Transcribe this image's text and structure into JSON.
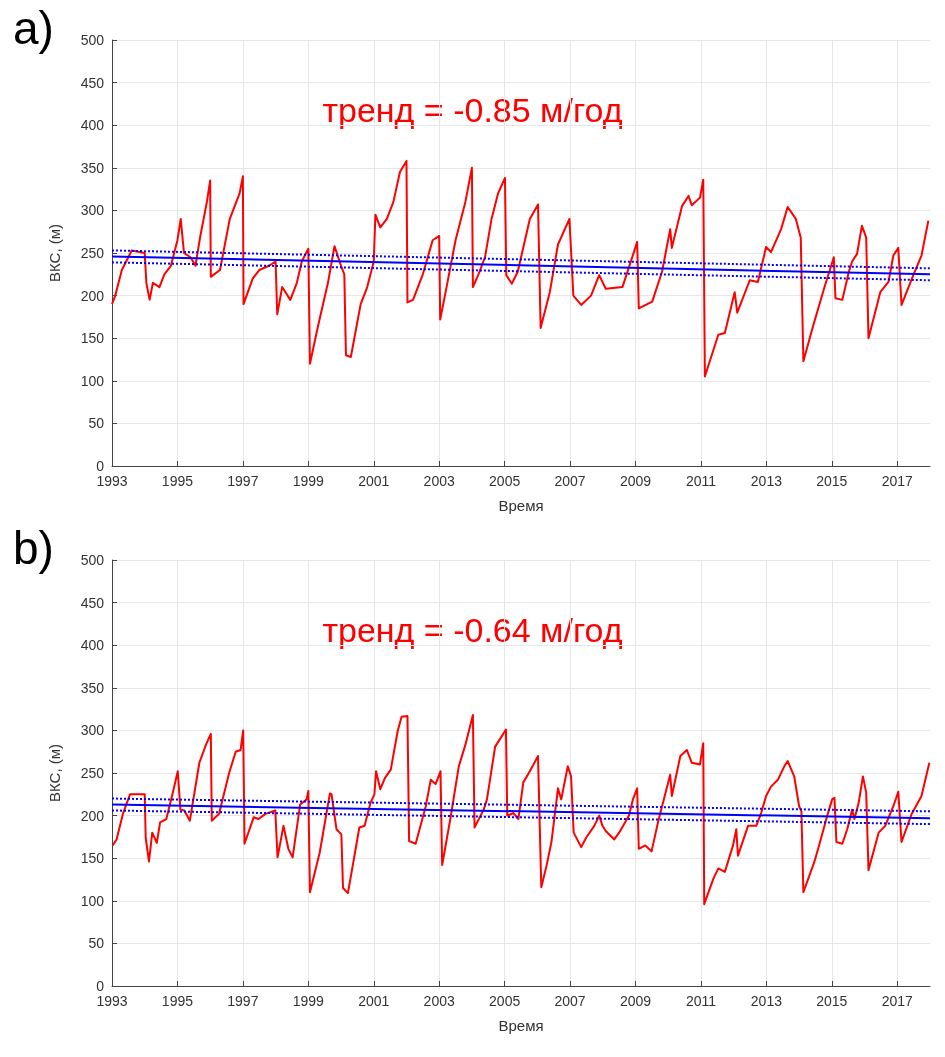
{
  "chart_data": [
    {
      "type": "line",
      "title": "a)",
      "xlabel": "Время",
      "ylabel": "ВКС, (м)",
      "annotations": [
        "тренд = -0.85 м/год"
      ],
      "xlim": [
        1993,
        2018
      ],
      "xticks": [
        1993,
        1995,
        1997,
        1999,
        2001,
        2003,
        2005,
        2007,
        2009,
        2011,
        2013,
        2015,
        2017
      ],
      "ylim": [
        0,
        500
      ],
      "yticks": [
        0,
        50,
        100,
        150,
        200,
        250,
        300,
        350,
        400,
        450,
        500
      ],
      "grid": true,
      "marker": "none",
      "series": [
        {
          "color": "#ff0000",
          "x": [
            1993.0,
            1993.1,
            1993.3,
            1993.5,
            1993.6,
            1994.0,
            1994.05,
            1994.15,
            1994.25,
            1994.45,
            1994.6,
            1994.8,
            1995.0,
            1995.1,
            1995.2,
            1995.4,
            1995.55,
            1995.7,
            1995.9,
            1996.0,
            1996.02,
            1996.3,
            1996.6,
            1996.9,
            1997.0,
            1997.02,
            1997.3,
            1997.5,
            1997.8,
            1998.0,
            1998.05,
            1998.2,
            1998.45,
            1998.65,
            1998.8,
            1999.0,
            1999.05,
            1999.3,
            1999.6,
            1999.8,
            2000.0,
            2000.1,
            2000.15,
            2000.3,
            2000.6,
            2000.8,
            2001.0,
            2001.05,
            2001.2,
            2001.4,
            2001.6,
            2001.8,
            2002.0,
            2002.03,
            2002.2,
            2002.5,
            2002.8,
            2003.0,
            2003.03,
            2003.2,
            2003.5,
            2003.8,
            2004.0,
            2004.03,
            2004.2,
            2004.4,
            2004.6,
            2004.8,
            2005.01,
            2005.05,
            2005.22,
            2005.4,
            2005.77,
            2006.02,
            2006.1,
            2006.38,
            2006.63,
            2006.98,
            2007.1,
            2007.34,
            2007.64,
            2007.89,
            2008.09,
            2008.6,
            2008.95,
            2009.05,
            2009.1,
            2009.51,
            2009.81,
            2010.06,
            2010.11,
            2010.42,
            2010.62,
            2010.72,
            2010.97,
            2011.07,
            2011.12,
            2011.53,
            2011.73,
            2012.03,
            2012.11,
            2012.49,
            2012.74,
            2012.99,
            2013.14,
            2013.45,
            2013.65,
            2013.9,
            2014.05,
            2014.13,
            2014.41,
            2014.76,
            2015.06,
            2015.11,
            2015.32,
            2015.52,
            2015.62,
            2015.77,
            2015.92,
            2016.05,
            2016.12,
            2016.48,
            2016.73,
            2016.88,
            2017.03,
            2017.13,
            2017.49,
            2017.74,
            2017.95
          ],
          "values": [
            190,
            200,
            230,
            245,
            253,
            250,
            215,
            195,
            215,
            210,
            225,
            235,
            265,
            290,
            250,
            245,
            235,
            270,
            310,
            335,
            222,
            230,
            290,
            320,
            340,
            190,
            220,
            230,
            235,
            240,
            178,
            210,
            195,
            215,
            240,
            255,
            120,
            165,
            215,
            258,
            235,
            225,
            130,
            128,
            190,
            210,
            240,
            295,
            280,
            290,
            310,
            345,
            358,
            192,
            195,
            225,
            265,
            270,
            172,
            205,
            265,
            310,
            350,
            210,
            225,
            245,
            290,
            320,
            338,
            224,
            214,
            228,
            290,
            307,
            162,
            204,
            260,
            290,
            200,
            189,
            200,
            224,
            208,
            210,
            251,
            263,
            185,
            193,
            228,
            278,
            256,
            305,
            317,
            306,
            315,
            336,
            105,
            154,
            156,
            204,
            180,
            218,
            216,
            257,
            251,
            278,
            304,
            290,
            268,
            123,
            162,
            208,
            245,
            197,
            195,
            228,
            240,
            249,
            282,
            268,
            150,
            204,
            216,
            247,
            256,
            189,
            224,
            247,
            288
          ]
        },
        {
          "type": "line",
          "color": "#0000ff",
          "x": [
            1993,
            2018
          ],
          "values": [
            246,
            225
          ]
        },
        {
          "type": "line",
          "color": "#0000ff",
          "line_style": "dotted",
          "x": [
            1993,
            2018
          ],
          "values": [
            253,
            232
          ]
        },
        {
          "type": "line",
          "color": "#0000ff",
          "line_style": "dotted",
          "x": [
            1993,
            2018
          ],
          "values": [
            239,
            218
          ]
        }
      ]
    },
    {
      "type": "line",
      "title": "b)",
      "xlabel": "Время",
      "ylabel": "ВКС, (м)",
      "annotations": [
        "тренд = -0.64 м/год"
      ],
      "xlim": [
        1993,
        2018
      ],
      "xticks": [
        1993,
        1995,
        1997,
        1999,
        2001,
        2003,
        2005,
        2007,
        2009,
        2011,
        2013,
        2015,
        2017
      ],
      "ylim": [
        0,
        500
      ],
      "yticks": [
        0,
        50,
        100,
        150,
        200,
        250,
        300,
        350,
        400,
        450,
        500
      ],
      "grid": true,
      "marker": "none",
      "series": [
        {
          "color": "#ff0000",
          "x": [
            1993.02,
            1993.14,
            1993.34,
            1993.55,
            1993.75,
            1994.0,
            1994.03,
            1994.13,
            1994.23,
            1994.37,
            1994.47,
            1994.66,
            1994.86,
            1995.01,
            1995.09,
            1995.21,
            1995.38,
            1995.67,
            1995.87,
            1996.02,
            1996.05,
            1996.27,
            1996.58,
            1996.78,
            1996.93,
            1997.01,
            1997.05,
            1997.33,
            1997.48,
            1997.69,
            1997.99,
            1998.06,
            1998.24,
            1998.39,
            1998.52,
            1998.75,
            1998.95,
            1999.0,
            1999.05,
            1999.35,
            1999.66,
            1999.71,
            1999.86,
            2000.01,
            2000.06,
            2000.21,
            2000.56,
            2000.72,
            2000.9,
            2001.02,
            2001.07,
            2001.2,
            2001.34,
            2001.52,
            2001.73,
            2001.85,
            2002.03,
            2002.08,
            2002.28,
            2002.59,
            2002.74,
            2002.89,
            2003.04,
            2003.09,
            2003.34,
            2003.6,
            2003.8,
            2004.03,
            2004.08,
            2004.36,
            2004.46,
            2004.71,
            2004.91,
            2005.04,
            2005.08,
            2005.27,
            2005.42,
            2005.57,
            2005.77,
            2006.02,
            2006.12,
            2006.28,
            2006.43,
            2006.63,
            2006.73,
            2006.93,
            2007.03,
            2007.11,
            2007.34,
            2007.49,
            2007.74,
            2007.89,
            2007.99,
            2008.09,
            2008.35,
            2008.5,
            2008.8,
            2008.92,
            2009.05,
            2009.1,
            2009.3,
            2009.49,
            2009.71,
            2010.06,
            2010.11,
            2010.37,
            2010.57,
            2010.72,
            2010.97,
            2011.07,
            2011.1,
            2011.38,
            2011.53,
            2011.73,
            2011.98,
            2012.08,
            2012.13,
            2012.44,
            2012.69,
            2012.84,
            2012.99,
            2013.14,
            2013.35,
            2013.55,
            2013.65,
            2013.85,
            2014.0,
            2014.07,
            2014.13,
            2014.46,
            2014.61,
            2014.86,
            2015.01,
            2015.08,
            2015.14,
            2015.32,
            2015.47,
            2015.62,
            2015.69,
            2015.82,
            2015.95,
            2016.05,
            2016.12,
            2016.43,
            2016.63,
            2016.88,
            2017.03,
            2017.13,
            2017.44,
            2017.74,
            2017.98
          ],
          "values": [
            165,
            172,
            203,
            225,
            225,
            225,
            174,
            146,
            180,
            168,
            192,
            196,
            227,
            252,
            207,
            206,
            194,
            262,
            283,
            296,
            194,
            202,
            250,
            275,
            277,
            300,
            167,
            198,
            196,
            202,
            206,
            151,
            188,
            161,
            151,
            213,
            219,
            229,
            110,
            157,
            226,
            225,
            184,
            178,
            115,
            109,
            186,
            188,
            215,
            225,
            252,
            231,
            244,
            254,
            299,
            316,
            317,
            170,
            167,
            211,
            242,
            237,
            252,
            142,
            196,
            258,
            283,
            318,
            186,
            207,
            219,
            281,
            293,
            301,
            200,
            203,
            196,
            239,
            252,
            270,
            116,
            141,
            169,
            232,
            219,
            258,
            246,
            180,
            163,
            174,
            188,
            200,
            188,
            182,
            172,
            180,
            200,
            219,
            232,
            161,
            165,
            158,
            196,
            248,
            223,
            270,
            277,
            262,
            260,
            285,
            96,
            126,
            138,
            134,
            165,
            184,
            153,
            188,
            188,
            203,
            223,
            234,
            242,
            258,
            264,
            246,
            211,
            205,
            110,
            145,
            165,
            200,
            219,
            221,
            169,
            167,
            184,
            207,
            196,
            215,
            246,
            227,
            136,
            180,
            188,
            211,
            228,
            169,
            202,
            223,
            262
          ]
        },
        {
          "type": "line",
          "color": "#0000ff",
          "x": [
            1993,
            2018
          ],
          "values": [
            213,
            197
          ]
        },
        {
          "type": "line",
          "color": "#0000ff",
          "line_style": "dotted",
          "x": [
            1993,
            2018
          ],
          "values": [
            220,
            205
          ]
        },
        {
          "type": "line",
          "color": "#0000ff",
          "line_style": "dotted",
          "x": [
            1993,
            2018
          ],
          "values": [
            206,
            190
          ]
        }
      ]
    }
  ]
}
